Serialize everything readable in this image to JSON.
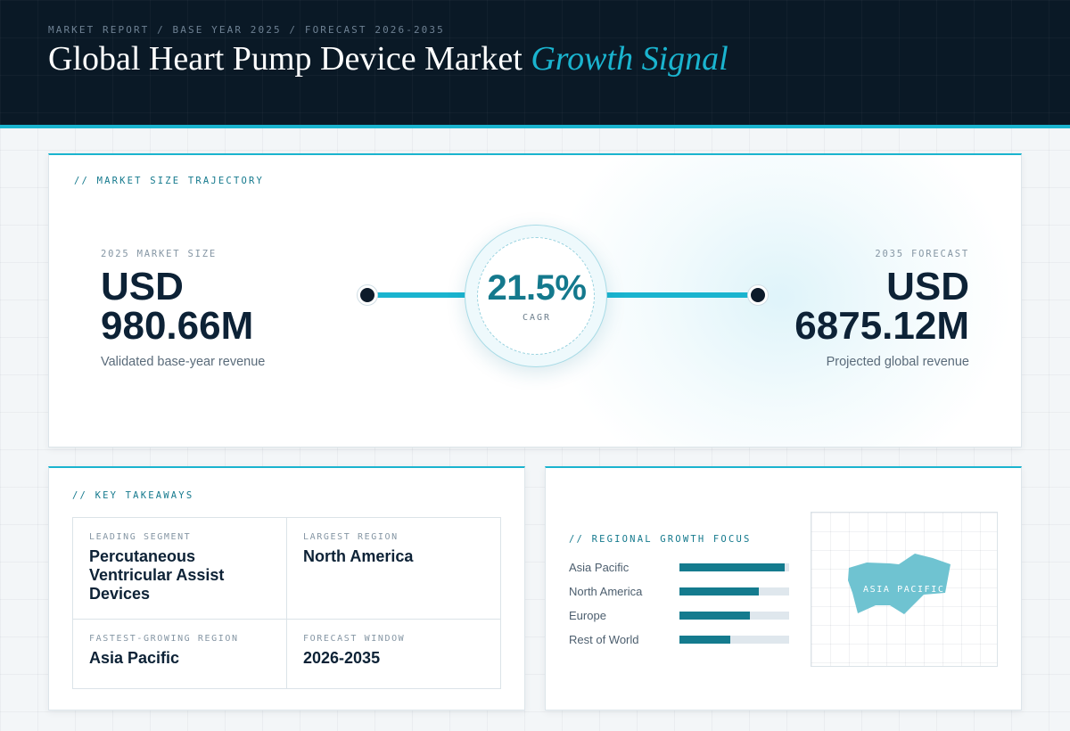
{
  "header": {
    "breadcrumb": "MARKET REPORT / BASE YEAR 2025 / FORECAST 2026-2035",
    "title_main": "Global Heart Pump Device Market",
    "title_accent": "Growth Signal"
  },
  "trajectory": {
    "section_label": "// MARKET SIZE TRAJECTORY",
    "start": {
      "label": "2025 MARKET SIZE",
      "currency": "USD",
      "value": "980.66M",
      "caption": "Validated base-year revenue"
    },
    "end": {
      "label": "2035 FORECAST",
      "currency": "USD",
      "value": "6875.12M",
      "caption": "Projected global revenue"
    },
    "cagr": {
      "value": "21.5%",
      "label": "CAGR"
    }
  },
  "takeaways": {
    "section_label": "// KEY TAKEAWAYS",
    "items": [
      {
        "label": "LEADING SEGMENT",
        "value": "Percutaneous Ventricular Assist Devices"
      },
      {
        "label": "LARGEST REGION",
        "value": "North America"
      },
      {
        "label": "FASTEST-GROWING REGION",
        "value": "Asia Pacific"
      },
      {
        "label": "FORECAST WINDOW",
        "value": "2026-2035"
      }
    ]
  },
  "regional": {
    "section_label": "// REGIONAL GROWTH FOCUS",
    "bars": [
      {
        "name": "Asia Pacific",
        "level": 0.96
      },
      {
        "name": "North America",
        "level": 0.72
      },
      {
        "name": "Europe",
        "level": 0.64
      },
      {
        "name": "Rest of World",
        "level": 0.46
      }
    ],
    "map_label": "ASIA PACIFIC",
    "colors": {
      "bar_fill": "#147b8e",
      "bar_track": "#dfe7ed",
      "map_shape": "#6fc3d1"
    }
  },
  "colors": {
    "accent": "#1ab4cf",
    "header_bg": "#0a1926",
    "cagr_text": "#14798d"
  }
}
